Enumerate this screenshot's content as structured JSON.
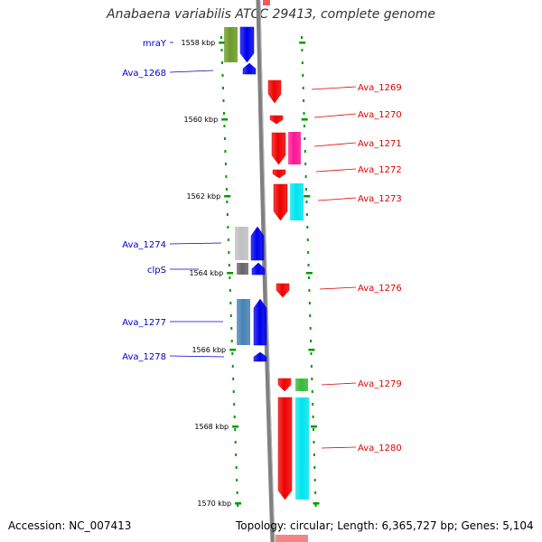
{
  "title": "Anabaena variabilis ATCC 29413, complete genome",
  "footer": {
    "accession": "Accession: NC_007413",
    "topology": "Topology: circular; Length: 6,365,727 bp; Genes: 5,104"
  },
  "colors": {
    "forward_label": "#0000cc",
    "reverse_label": "#dd0000",
    "tick": "#009900",
    "backbone": "#808080"
  },
  "scale_ticks": [
    {
      "label": "1558 kbp",
      "kbp": 1558
    },
    {
      "label": "1560 kbp",
      "kbp": 1560
    },
    {
      "label": "1562 kbp",
      "kbp": 1562
    },
    {
      "label": "1564 kbp",
      "kbp": 1564
    },
    {
      "label": "1566 kbp",
      "kbp": 1566
    },
    {
      "label": "1568 kbp",
      "kbp": 1568
    },
    {
      "label": "1570 kbp",
      "kbp": 1570
    }
  ],
  "forward_genes": [
    {
      "label": "mraY",
      "color": "#6b9a2a"
    },
    {
      "label": "Ava_1268",
      "color": "#0000ee"
    },
    {
      "label": "Ava_1274",
      "color": "#c0c0c0"
    },
    {
      "label": "clpS",
      "color": "#666666"
    },
    {
      "label": "Ava_1277",
      "color": "#4682b4"
    },
    {
      "label": "Ava_1278",
      "color": "#0000ee"
    }
  ],
  "reverse_genes": [
    {
      "label": "Ava_1269",
      "color": "#ee0000"
    },
    {
      "label": "Ava_1270",
      "color": "#ee0000"
    },
    {
      "label": "Ava_1271",
      "color": "#ff1493"
    },
    {
      "label": "Ava_1272",
      "color": "#ee0000"
    },
    {
      "label": "Ava_1273",
      "color": "#00e5ee"
    },
    {
      "label": "Ava_1276",
      "color": "#ee0000"
    },
    {
      "label": "Ava_1279",
      "color": "#33bb33"
    },
    {
      "label": "Ava_1280",
      "color": "#00e5ee"
    }
  ]
}
